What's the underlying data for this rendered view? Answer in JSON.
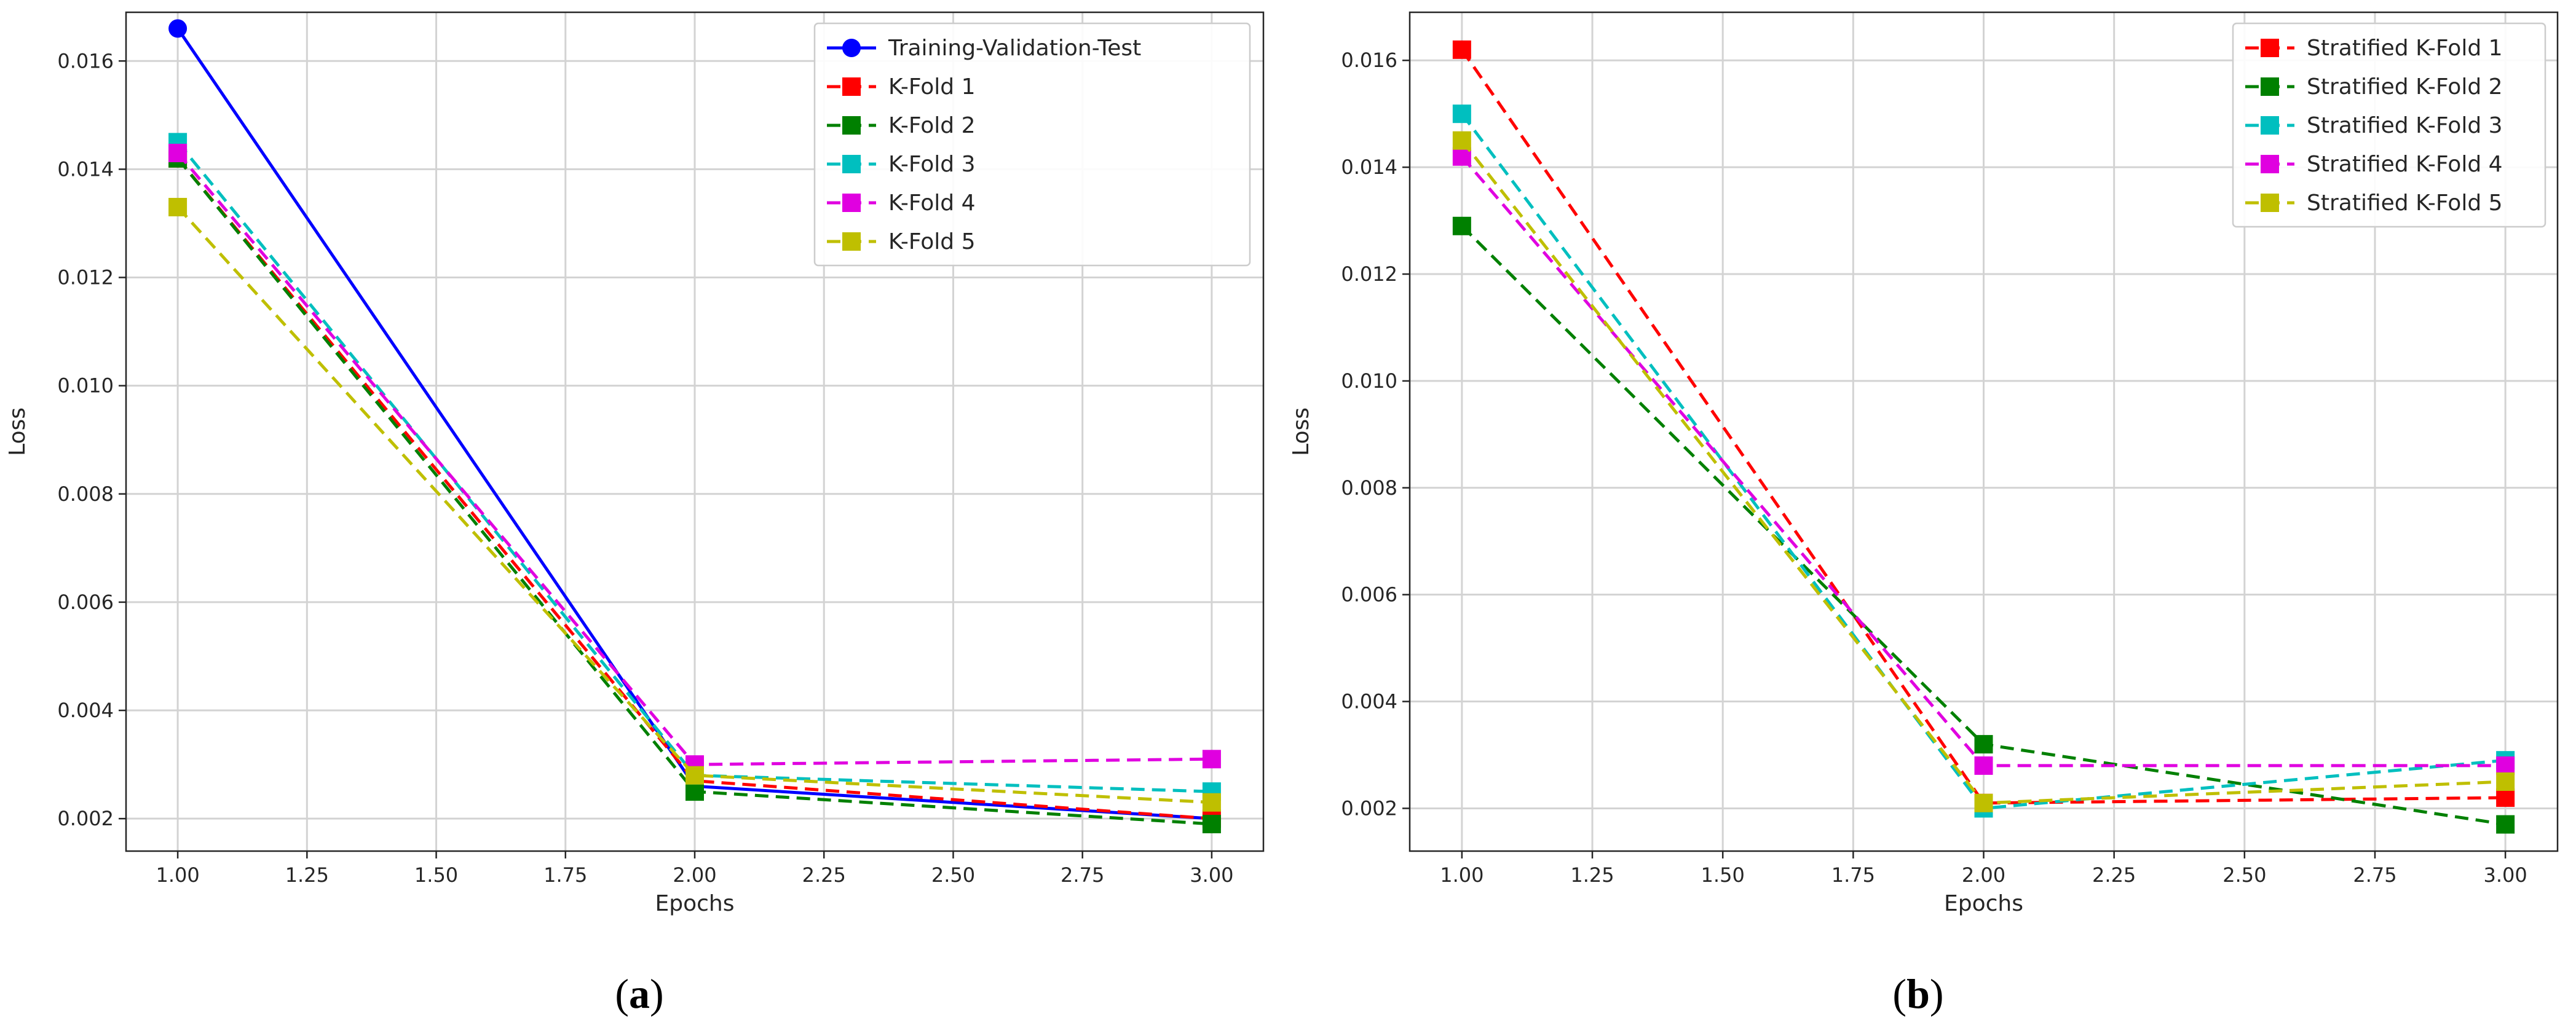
{
  "chart_data": [
    {
      "type": "line",
      "panel_label": "a",
      "xlabel": "Epochs",
      "ylabel": "Loss",
      "xlim": [
        0.9,
        3.1
      ],
      "ylim": [
        0.0014,
        0.0169
      ],
      "xticks": [
        "1.00",
        "1.25",
        "1.50",
        "1.75",
        "2.00",
        "2.25",
        "2.50",
        "2.75",
        "3.00"
      ],
      "yticks": [
        "0.002",
        "0.004",
        "0.006",
        "0.008",
        "0.010",
        "0.012",
        "0.014",
        "0.016"
      ],
      "grid": true,
      "legend_position": "top-right",
      "x": [
        1,
        2,
        3
      ],
      "series": [
        {
          "name": "Training-Validation-Test",
          "values": [
            0.0166,
            0.0026,
            0.002
          ],
          "color": "#0000ff",
          "dash": false,
          "marker": "circle"
        },
        {
          "name": "K-Fold 1",
          "values": [
            0.0142,
            0.0027,
            0.002
          ],
          "color": "#ff0000",
          "dash": true,
          "marker": "square"
        },
        {
          "name": "K-Fold 2",
          "values": [
            0.0142,
            0.0025,
            0.0019
          ],
          "color": "#008000",
          "dash": true,
          "marker": "square"
        },
        {
          "name": "K-Fold 3",
          "values": [
            0.0145,
            0.0028,
            0.0025
          ],
          "color": "#00bfbf",
          "dash": true,
          "marker": "square"
        },
        {
          "name": "K-Fold 4",
          "values": [
            0.0143,
            0.003,
            0.0031
          ],
          "color": "#e000e0",
          "dash": true,
          "marker": "square"
        },
        {
          "name": "K-Fold 5",
          "values": [
            0.0133,
            0.0028,
            0.0023
          ],
          "color": "#bfbf00",
          "dash": true,
          "marker": "square"
        }
      ]
    },
    {
      "type": "line",
      "panel_label": "b",
      "xlabel": "Epochs",
      "ylabel": "Loss",
      "xlim": [
        0.9,
        3.1
      ],
      "ylim": [
        0.0012,
        0.0169
      ],
      "xticks": [
        "1.00",
        "1.25",
        "1.50",
        "1.75",
        "2.00",
        "2.25",
        "2.50",
        "2.75",
        "3.00"
      ],
      "yticks": [
        "0.002",
        "0.004",
        "0.006",
        "0.008",
        "0.010",
        "0.012",
        "0.014",
        "0.016"
      ],
      "grid": true,
      "legend_position": "top-right",
      "x": [
        1,
        2,
        3
      ],
      "series": [
        {
          "name": "Stratified K-Fold 1",
          "values": [
            0.0162,
            0.0021,
            0.0022
          ],
          "color": "#ff0000",
          "dash": true,
          "marker": "square"
        },
        {
          "name": "Stratified K-Fold 2",
          "values": [
            0.0129,
            0.0032,
            0.0017
          ],
          "color": "#008000",
          "dash": true,
          "marker": "square"
        },
        {
          "name": "Stratified K-Fold 3",
          "values": [
            0.015,
            0.002,
            0.0029
          ],
          "color": "#00bfbf",
          "dash": true,
          "marker": "square"
        },
        {
          "name": "Stratified K-Fold 4",
          "values": [
            0.0142,
            0.0028,
            0.0028
          ],
          "color": "#e000e0",
          "dash": true,
          "marker": "square"
        },
        {
          "name": "Stratified K-Fold 5",
          "values": [
            0.0145,
            0.0021,
            0.0025
          ],
          "color": "#bfbf00",
          "dash": true,
          "marker": "square"
        }
      ]
    }
  ]
}
